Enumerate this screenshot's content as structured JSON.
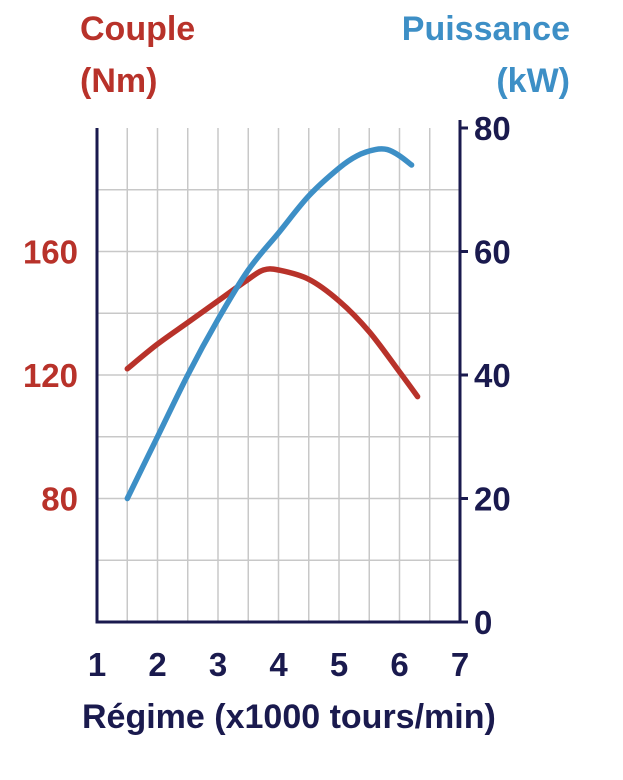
{
  "chart_data": {
    "type": "line",
    "title": "",
    "xlabel": "Régime (x1000 tours/min)",
    "x_ticks": [
      "1",
      "2",
      "3",
      "4",
      "5",
      "6",
      "7"
    ],
    "xlim": [
      1,
      7
    ],
    "y_left": {
      "label_line1": "Couple",
      "label_line2": "(Nm)",
      "ticks": [
        "80",
        "120",
        "160"
      ],
      "ylim": [
        40,
        200
      ],
      "color": "#b8322a"
    },
    "y_right": {
      "label_line1": "Puissance",
      "label_line2": "(kW)",
      "ticks": [
        "0",
        "20",
        "40",
        "60",
        "80"
      ],
      "ylim": [
        0,
        80
      ],
      "color": "#3d8fc6"
    },
    "axis_color": "#1a1a4e",
    "grid": true,
    "series": [
      {
        "axis": "left",
        "color": "#b8322a",
        "x": [
          1.5,
          2.0,
          2.5,
          3.0,
          3.5,
          3.75,
          4.0,
          4.5,
          5.0,
          5.5,
          6.0,
          6.3
        ],
        "y": [
          122,
          130,
          137,
          144,
          151,
          154,
          154,
          151,
          144,
          134,
          121,
          113
        ]
      },
      {
        "axis": "right",
        "color": "#3d8fc6",
        "x": [
          1.5,
          2.0,
          2.5,
          3.0,
          3.5,
          4.0,
          4.5,
          5.0,
          5.3,
          5.6,
          5.8,
          6.0,
          6.2
        ],
        "y": [
          20,
          30,
          40,
          49,
          57,
          63,
          69,
          73.5,
          75.5,
          76.5,
          76.5,
          75.5,
          74
        ]
      }
    ]
  }
}
